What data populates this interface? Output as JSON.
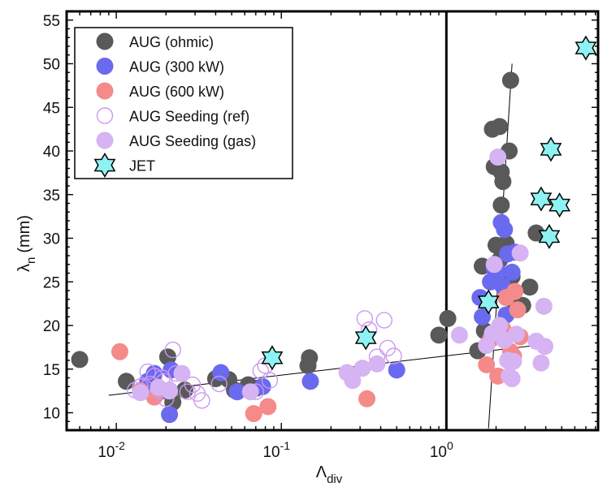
{
  "chart_data": {
    "type": "scatter",
    "title": "",
    "xlabel_main": "Λ",
    "xlabel_sub": "div",
    "ylabel_main": "λ",
    "ylabel_sub": "n",
    "ylabel_units": "(mm)",
    "x_scale": "log",
    "xlim": [
      0.005,
      8.3
    ],
    "ylim": [
      8,
      56
    ],
    "x_ticks": [
      {
        "value": 0.01,
        "base": "10",
        "exp": "-2"
      },
      {
        "value": 0.1,
        "base": "10",
        "exp": "-1"
      },
      {
        "value": 1,
        "base": "10",
        "exp": "0"
      }
    ],
    "y_ticks": [
      "10",
      "15",
      "20",
      "25",
      "30",
      "35",
      "40",
      "45",
      "50",
      "55"
    ],
    "grid": false,
    "legend_position": "top-left",
    "vline_x": 1,
    "fit_lines": [
      {
        "x": [
          0.009,
          3.8
        ],
        "y": [
          12.0,
          17.8
        ]
      },
      {
        "x": [
          1.8,
          2.5
        ],
        "y": [
          8.2,
          50
        ]
      }
    ],
    "series": [
      {
        "name": "AUG (ohmic)",
        "marker": "circle",
        "filled": true,
        "color": "#595959",
        "points": [
          [
            0.006,
            16.1
          ],
          [
            0.0115,
            13.6
          ],
          [
            0.0205,
            16.4
          ],
          [
            0.022,
            11.2
          ],
          [
            0.026,
            12.6
          ],
          [
            0.04,
            13.9
          ],
          [
            0.048,
            13.8
          ],
          [
            0.052,
            12.6
          ],
          [
            0.063,
            13.2
          ],
          [
            0.07,
            12.8
          ],
          [
            0.145,
            15.4
          ],
          [
            0.148,
            16.3
          ],
          [
            0.9,
            18.9
          ],
          [
            1.02,
            20.8
          ],
          [
            1.55,
            17.1
          ],
          [
            1.7,
            19.4
          ],
          [
            1.65,
            26.8
          ],
          [
            1.9,
            42.5
          ],
          [
            2.1,
            42.8
          ],
          [
            1.95,
            38.2
          ],
          [
            2.15,
            37.6
          ],
          [
            2.2,
            36.5
          ],
          [
            2.15,
            33.8
          ],
          [
            2.4,
            40.0
          ],
          [
            2.45,
            48.1
          ],
          [
            2.0,
            29.2
          ],
          [
            2.3,
            29.4
          ],
          [
            2.1,
            27.5
          ],
          [
            2.5,
            25.6
          ],
          [
            2.6,
            22.5
          ],
          [
            2.9,
            22.3
          ],
          [
            3.2,
            24.4
          ],
          [
            3.5,
            30.6
          ]
        ]
      },
      {
        "name": "AUG (300 kW)",
        "marker": "circle",
        "filled": true,
        "color": "#6a6aee",
        "points": [
          [
            0.0155,
            13.6
          ],
          [
            0.017,
            14.5
          ],
          [
            0.019,
            12.5
          ],
          [
            0.021,
            9.8
          ],
          [
            0.0215,
            14.9
          ],
          [
            0.043,
            14.6
          ],
          [
            0.054,
            12.4
          ],
          [
            0.077,
            13.0
          ],
          [
            0.15,
            13.6
          ],
          [
            0.5,
            14.9
          ],
          [
            1.6,
            23.2
          ],
          [
            1.65,
            21.0
          ],
          [
            1.85,
            25.0
          ],
          [
            1.95,
            26.5
          ],
          [
            2.05,
            26.2
          ],
          [
            2.15,
            31.8
          ],
          [
            2.25,
            31.0
          ],
          [
            2.35,
            28.2
          ],
          [
            2.5,
            26.1
          ],
          [
            2.6,
            28.4
          ],
          [
            2.2,
            24.5
          ],
          [
            2.3,
            21.2
          ]
        ]
      },
      {
        "name": "AUG (600 kW)",
        "marker": "circle",
        "filled": true,
        "color": "#f58a8a",
        "points": [
          [
            0.0105,
            17.0
          ],
          [
            0.014,
            12.5
          ],
          [
            0.017,
            11.8
          ],
          [
            0.068,
            9.9
          ],
          [
            0.083,
            10.7
          ],
          [
            0.33,
            11.6
          ],
          [
            1.75,
            15.5
          ],
          [
            1.85,
            18.4
          ],
          [
            2.05,
            14.2
          ],
          [
            2.2,
            19.6
          ],
          [
            2.3,
            23.2
          ],
          [
            2.45,
            17.0
          ],
          [
            2.55,
            16.5
          ],
          [
            2.6,
            23.9
          ],
          [
            2.7,
            21.8
          ],
          [
            2.8,
            18.7
          ]
        ]
      },
      {
        "name": "AUG Seeding (ref)",
        "marker": "circle",
        "filled": false,
        "color": "#cc99ee",
        "points": [
          [
            0.013,
            12.6
          ],
          [
            0.014,
            13.0
          ],
          [
            0.0155,
            14.7
          ],
          [
            0.016,
            13.3
          ],
          [
            0.017,
            14.2
          ],
          [
            0.018,
            12.6
          ],
          [
            0.019,
            14.0
          ],
          [
            0.0195,
            13.6
          ],
          [
            0.02,
            11.6
          ],
          [
            0.021,
            12.6
          ],
          [
            0.022,
            17.2
          ],
          [
            0.023,
            14.5
          ],
          [
            0.027,
            12.4
          ],
          [
            0.029,
            13.2
          ],
          [
            0.031,
            12.2
          ],
          [
            0.033,
            11.4
          ],
          [
            0.042,
            13.3
          ],
          [
            0.07,
            12.4
          ],
          [
            0.075,
            14.8
          ],
          [
            0.08,
            15.4
          ],
          [
            0.085,
            13.7
          ],
          [
            0.32,
            20.8
          ],
          [
            0.34,
            19.5
          ],
          [
            0.38,
            16.4
          ],
          [
            0.42,
            20.6
          ],
          [
            0.44,
            17.4
          ],
          [
            0.48,
            16.5
          ]
        ]
      },
      {
        "name": "AUG Seeding (gas)",
        "marker": "circle",
        "filled": true,
        "color": "#d6b3f2",
        "points": [
          [
            0.014,
            12.3
          ],
          [
            0.018,
            12.9
          ],
          [
            0.021,
            12.5
          ],
          [
            0.025,
            14.5
          ],
          [
            0.065,
            12.4
          ],
          [
            0.25,
            14.6
          ],
          [
            0.27,
            13.7
          ],
          [
            0.31,
            15.1
          ],
          [
            0.38,
            15.6
          ],
          [
            1.2,
            18.9
          ],
          [
            1.75,
            17.7
          ],
          [
            1.9,
            19.1
          ],
          [
            1.95,
            27.0
          ],
          [
            2.05,
            39.3
          ],
          [
            2.1,
            20.0
          ],
          [
            2.25,
            18.3
          ],
          [
            2.35,
            16.0
          ],
          [
            2.4,
            14.2
          ],
          [
            2.5,
            13.9
          ],
          [
            2.55,
            15.9
          ],
          [
            2.65,
            19.0
          ],
          [
            2.8,
            28.3
          ],
          [
            3.5,
            18.2
          ],
          [
            3.75,
            15.7
          ],
          [
            3.9,
            22.2
          ],
          [
            3.95,
            17.6
          ]
        ]
      },
      {
        "name": "JET",
        "marker": "star",
        "filled": true,
        "color": "#8ff2f2",
        "points": [
          [
            0.088,
            16.3
          ],
          [
            0.325,
            18.6
          ],
          [
            1.8,
            22.7
          ],
          [
            3.75,
            34.5
          ],
          [
            4.2,
            30.2
          ],
          [
            4.3,
            40.2
          ],
          [
            4.85,
            33.8
          ],
          [
            7.0,
            51.8
          ]
        ]
      }
    ]
  }
}
